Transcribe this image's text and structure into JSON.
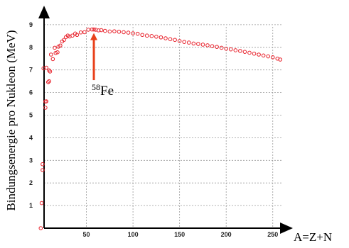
{
  "chart_data": {
    "type": "scatter",
    "title": "",
    "xlabel": "A=Z+N",
    "ylabel": "Bindungsenergie pro Nukleon (MeV)",
    "xlim": [
      0,
      265
    ],
    "ylim": [
      0,
      9.6
    ],
    "xticks": [
      50,
      100,
      150,
      200,
      250
    ],
    "yticks": [
      1,
      2,
      3,
      4,
      5,
      6,
      7,
      8,
      9
    ],
    "grid": true,
    "marker": "open-circle",
    "color": "#e8202a",
    "annotation": {
      "text_sup": "58",
      "text": "Fe",
      "x": 58,
      "y": 8.79,
      "arrow_color": "#e8401a"
    },
    "series": [
      {
        "x": [
          1,
          2,
          3,
          3,
          4,
          6,
          6,
          7,
          7,
          9,
          10,
          10,
          11,
          12,
          14,
          16,
          17,
          19,
          20,
          22,
          24,
          26,
          28,
          30,
          32,
          35,
          38,
          40,
          44,
          48,
          52,
          56,
          58,
          60,
          63,
          66,
          70,
          75,
          80,
          85,
          90,
          95,
          100,
          105,
          110,
          115,
          120,
          125,
          130,
          135,
          140,
          145,
          150,
          155,
          160,
          165,
          170,
          175,
          180,
          185,
          190,
          195,
          200,
          205,
          210,
          215,
          220,
          225,
          230,
          235,
          240,
          245,
          250,
          255,
          258
        ],
        "y": [
          0,
          1.11,
          2.57,
          2.83,
          7.07,
          5.33,
          5.6,
          5.61,
          7.1,
          6.46,
          6.5,
          6.98,
          6.93,
          7.68,
          7.48,
          7.98,
          7.75,
          7.78,
          8.03,
          8.08,
          8.26,
          8.33,
          8.45,
          8.52,
          8.48,
          8.52,
          8.61,
          8.55,
          8.66,
          8.67,
          8.78,
          8.79,
          8.79,
          8.78,
          8.75,
          8.76,
          8.73,
          8.7,
          8.71,
          8.69,
          8.67,
          8.65,
          8.62,
          8.6,
          8.55,
          8.52,
          8.5,
          8.47,
          8.44,
          8.4,
          8.36,
          8.33,
          8.28,
          8.24,
          8.21,
          8.17,
          8.15,
          8.12,
          8.09,
          8.05,
          8.02,
          7.98,
          7.94,
          7.91,
          7.87,
          7.84,
          7.8,
          7.76,
          7.72,
          7.68,
          7.64,
          7.6,
          7.56,
          7.5,
          7.46
        ]
      }
    ]
  }
}
